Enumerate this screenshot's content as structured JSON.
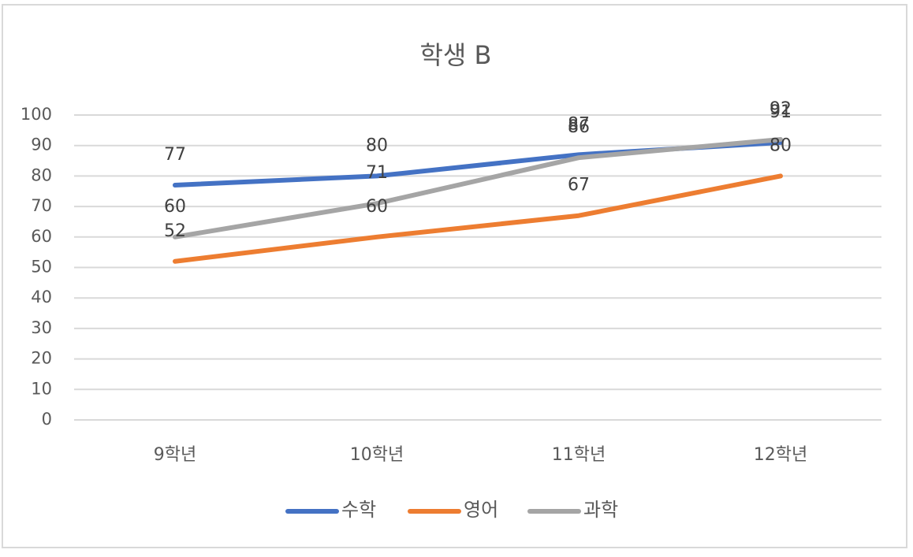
{
  "chart_data": {
    "type": "line",
    "title": "학생 B",
    "categories": [
      "9학년",
      "10학년",
      "11학년",
      "12학년"
    ],
    "series": [
      {
        "name": "수학",
        "color": "#4472c4",
        "values": [
          77,
          80,
          87,
          91
        ]
      },
      {
        "name": "영어",
        "color": "#ed7d31",
        "values": [
          52,
          60,
          67,
          80
        ]
      },
      {
        "name": "과학",
        "color": "#a5a5a5",
        "values": [
          60,
          71,
          86,
          92
        ]
      }
    ],
    "ylim": [
      0,
      100
    ],
    "yticks": [
      0,
      10,
      20,
      30,
      40,
      50,
      60,
      70,
      80,
      90,
      100
    ],
    "grid": true,
    "legend": "bottom",
    "data_labels": true
  }
}
